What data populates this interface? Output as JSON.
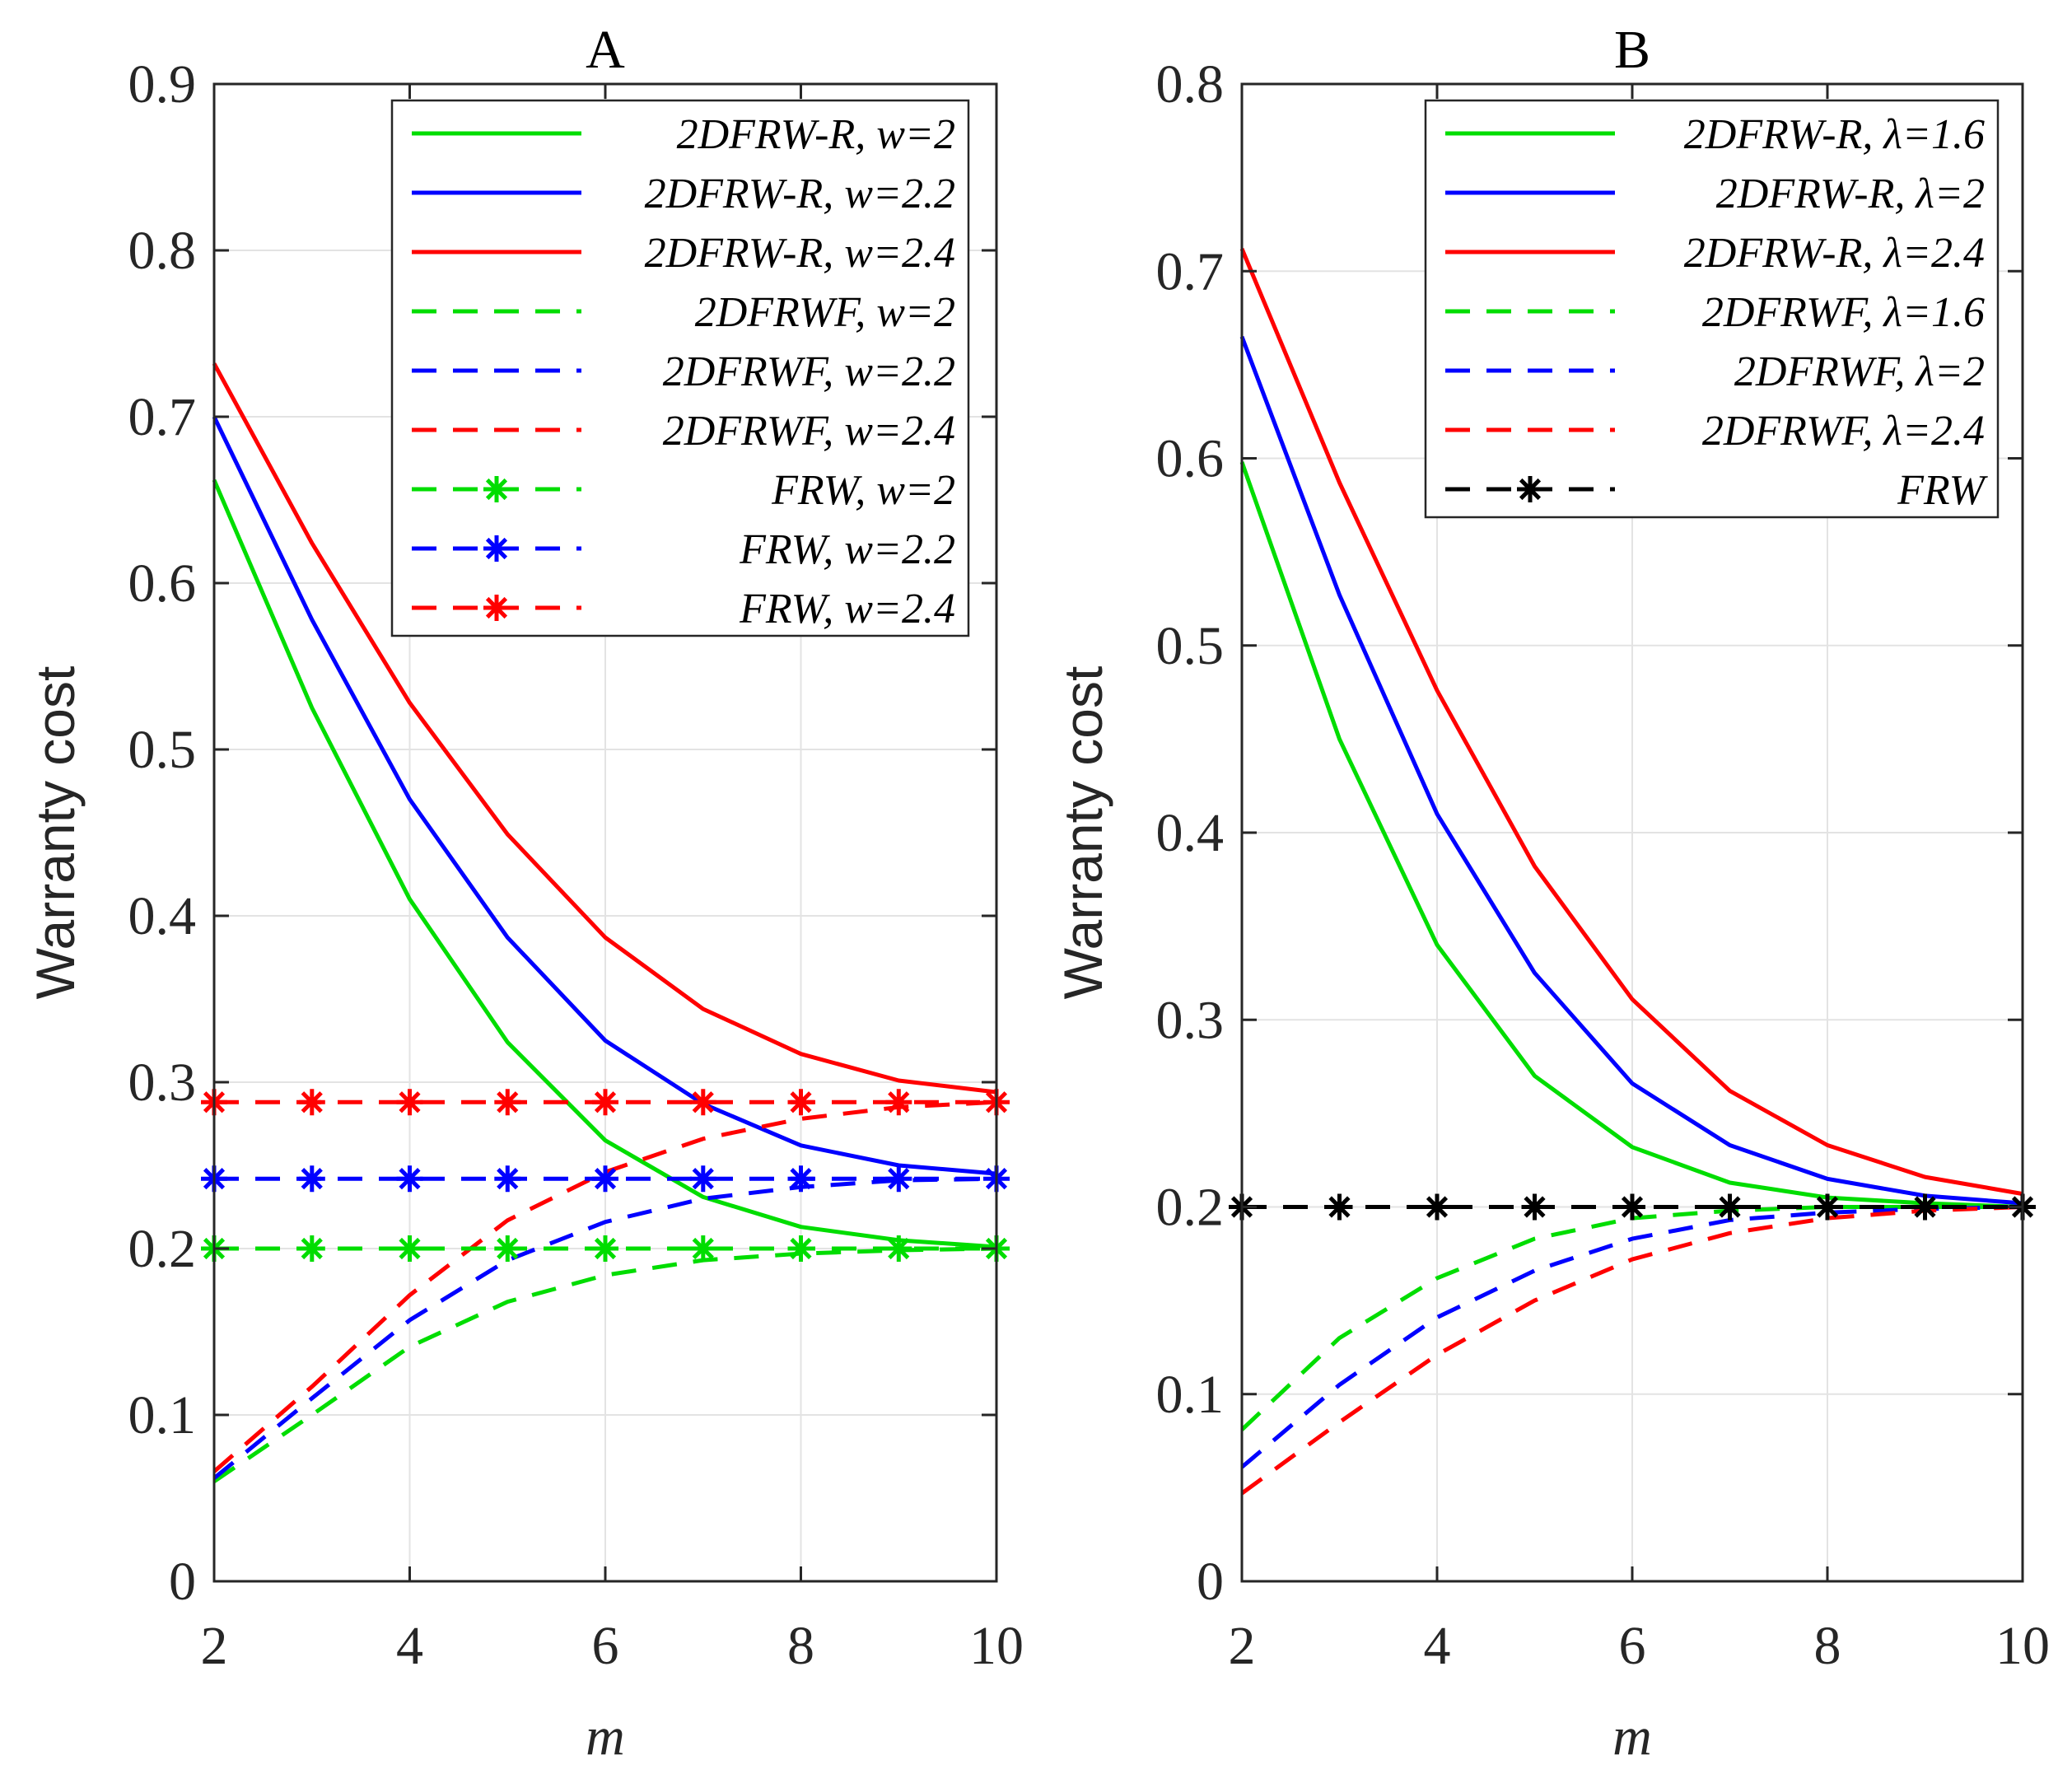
{
  "chart_data": [
    {
      "type": "line",
      "title": "A",
      "xlabel": "m",
      "ylabel": "Warranty cost",
      "xlim": [
        2,
        10
      ],
      "ylim": [
        0,
        0.9
      ],
      "xticks": [
        "2",
        "4",
        "6",
        "8",
        "10"
      ],
      "yticks": [
        "0",
        "0.1",
        "0.2",
        "0.3",
        "0.4",
        "0.5",
        "0.6",
        "0.7",
        "0.8",
        "0.9"
      ],
      "grid": true,
      "legend_position": "top-right",
      "x": [
        2,
        3,
        4,
        5,
        6,
        7,
        8,
        9,
        10
      ],
      "series": [
        {
          "name": "2DFRW-R, w=2",
          "color": "#00dd00",
          "style": "solid",
          "marker": "none",
          "values": [
            0.662,
            0.525,
            0.41,
            0.324,
            0.265,
            0.231,
            0.213,
            0.205,
            0.201
          ]
        },
        {
          "name": "2DFRW-R, w=2.2",
          "color": "#0000ff",
          "style": "solid",
          "marker": "none",
          "values": [
            0.7,
            0.578,
            0.47,
            0.387,
            0.325,
            0.287,
            0.262,
            0.25,
            0.245
          ]
        },
        {
          "name": "2DFRW-R, w=2.4",
          "color": "#ff0000",
          "style": "solid",
          "marker": "none",
          "values": [
            0.732,
            0.624,
            0.528,
            0.449,
            0.387,
            0.344,
            0.317,
            0.301,
            0.294
          ]
        },
        {
          "name": "2DFRWF, w=2",
          "color": "#00dd00",
          "style": "dashed",
          "marker": "none",
          "values": [
            0.06,
            0.1,
            0.141,
            0.168,
            0.184,
            0.193,
            0.197,
            0.199,
            0.2
          ]
        },
        {
          "name": "2DFRWF, w=2.2",
          "color": "#0000ff",
          "style": "dashed",
          "marker": "none",
          "values": [
            0.062,
            0.11,
            0.157,
            0.193,
            0.216,
            0.23,
            0.237,
            0.241,
            0.242
          ]
        },
        {
          "name": "2DFRWF, w=2.4",
          "color": "#ff0000",
          "style": "dashed",
          "marker": "none",
          "values": [
            0.066,
            0.117,
            0.172,
            0.217,
            0.246,
            0.266,
            0.278,
            0.285,
            0.288
          ]
        },
        {
          "name": "FRW, w=2",
          "color": "#00dd00",
          "style": "dashed",
          "marker": "*",
          "values": [
            0.2,
            0.2,
            0.2,
            0.2,
            0.2,
            0.2,
            0.2,
            0.2,
            0.2
          ]
        },
        {
          "name": "FRW, w=2.2",
          "color": "#0000ff",
          "style": "dashed",
          "marker": "*",
          "values": [
            0.242,
            0.242,
            0.242,
            0.242,
            0.242,
            0.242,
            0.242,
            0.242,
            0.242
          ]
        },
        {
          "name": "FRW, w=2.4",
          "color": "#ff0000",
          "style": "dashed",
          "marker": "*",
          "values": [
            0.288,
            0.288,
            0.288,
            0.288,
            0.288,
            0.288,
            0.288,
            0.288,
            0.288
          ]
        }
      ]
    },
    {
      "type": "line",
      "title": "B",
      "xlabel": "m",
      "ylabel": "Warranty cost",
      "xlim": [
        2,
        10
      ],
      "ylim": [
        0,
        0.8
      ],
      "xticks": [
        "2",
        "4",
        "6",
        "8",
        "10"
      ],
      "yticks": [
        "0",
        "0.1",
        "0.2",
        "0.3",
        "0.4",
        "0.5",
        "0.6",
        "0.7",
        "0.8"
      ],
      "grid": true,
      "legend_position": "top-right",
      "x": [
        2,
        3,
        4,
        5,
        6,
        7,
        8,
        9,
        10
      ],
      "series": [
        {
          "name": "2DFRW-R, λ=1.6",
          "color": "#00dd00",
          "style": "solid",
          "marker": "none",
          "values": [
            0.598,
            0.45,
            0.34,
            0.27,
            0.232,
            0.213,
            0.205,
            0.202,
            0.2
          ]
        },
        {
          "name": "2DFRW-R, λ=2",
          "color": "#0000ff",
          "style": "solid",
          "marker": "none",
          "values": [
            0.665,
            0.527,
            0.41,
            0.325,
            0.266,
            0.233,
            0.215,
            0.206,
            0.202
          ]
        },
        {
          "name": "2DFRW-R, λ=2.4",
          "color": "#ff0000",
          "style": "solid",
          "marker": "none",
          "values": [
            0.712,
            0.587,
            0.476,
            0.382,
            0.311,
            0.262,
            0.233,
            0.216,
            0.207
          ]
        },
        {
          "name": "2DFRWF, λ=1.6",
          "color": "#00dd00",
          "style": "dashed",
          "marker": "none",
          "values": [
            0.081,
            0.13,
            0.162,
            0.183,
            0.194,
            0.198,
            0.2,
            0.2,
            0.2
          ]
        },
        {
          "name": "2DFRWF, λ=2",
          "color": "#0000ff",
          "style": "dashed",
          "marker": "none",
          "values": [
            0.061,
            0.105,
            0.141,
            0.166,
            0.183,
            0.193,
            0.197,
            0.199,
            0.2
          ]
        },
        {
          "name": "2DFRWF, λ=2.4",
          "color": "#ff0000",
          "style": "dashed",
          "marker": "none",
          "values": [
            0.047,
            0.085,
            0.121,
            0.15,
            0.172,
            0.186,
            0.194,
            0.198,
            0.2
          ]
        },
        {
          "name": "FRW",
          "color": "#000000",
          "style": "dashed",
          "marker": "*",
          "values": [
            0.2,
            0.2,
            0.2,
            0.2,
            0.2,
            0.2,
            0.2,
            0.2,
            0.2
          ]
        }
      ]
    }
  ]
}
